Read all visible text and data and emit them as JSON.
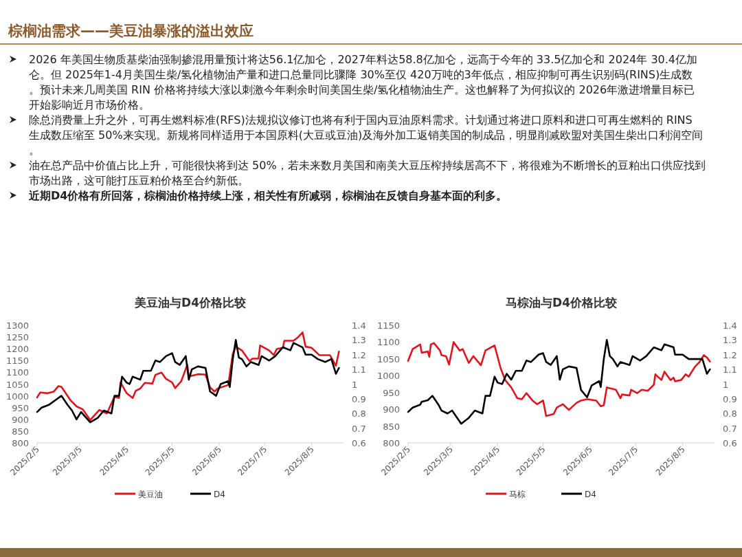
{
  "chart_data": [
    {
      "type": "other",
      "title": "棕榈油需求——美豆油暴涨的溢出效应",
      "annotations": [
        "2026 年美国生物质基柴油强制掺混用量预计将达56.1亿加仑，2027年料达58.8亿加仑，远高于今年的 33.5亿加仑和 2024年 30.4亿加仑。但 2025年1-4月美国生柴/氢化植物油产量和进口总量同比骤降 30%至仅 420万吨的3年低点，相应抑制可再生识别码(RINS)生成数。预计未来几周美国 RIN 价格将持续大涨以刺激今年剩余时间美国生柴/氢化植物油生产。这也解释了为何拟议的 2026年激进增量目标已开始影响近月市场价格。",
        "除总消费量上升之外，可再生燃料标准(RFS)法规拟议修订也将有利于国内豆油原料需求。计划通过将进口原料和进口可再生燃料的 RINS 生成数压缩至 50%来实现。新规将同样适用于本国原料(大豆或豆油)及海外加工返销美国的制成品，明显削减欧盟对美国生柴出口利润空间。",
        "油在总产品中价值占比上升，可能很快将到达 50%，若未来数月美国和南美大豆压榨持续居高不下，将很难为不断增长的豆粕出口供应找到市场出路，这可能打压豆粕价格至合约新低。",
        "近期D4价格有所回落，棕榈油价格持续上涨，相关性有所减弱，棕榈油在反馈自身基本面的利多。"
      ]
    },
    {
      "type": "line",
      "title": "美豆油与D4价格比较",
      "legend": "bottom",
      "xlim": [
        "2025-02-05",
        "2025-08-26"
      ],
      "xticks": [
        {
          "value": "2025-02-05",
          "label": "2025/2/5"
        },
        {
          "value": "2025-03-05",
          "label": "2025/3/5"
        },
        {
          "value": "2025-04-05",
          "label": "2025/4/5"
        },
        {
          "value": "2025-05-05",
          "label": "2025/5/5"
        },
        {
          "value": "2025-06-05",
          "label": "2025/6/5"
        },
        {
          "value": "2025-07-05",
          "label": "2025/7/5"
        },
        {
          "value": "2025-08-05",
          "label": "2025/8/5"
        }
      ],
      "ylim": [
        800,
        1300
      ],
      "yticks": [
        800,
        850,
        900,
        950,
        1000,
        1050,
        1100,
        1150,
        1200,
        1250,
        1300
      ],
      "y2lim": [
        0.6,
        1.4
      ],
      "y2ticks": [
        0.6,
        0.7,
        0.8,
        0.9,
        1,
        1.1,
        1.2,
        1.3,
        1.4
      ],
      "series": [
        {
          "name": "美豆油",
          "color": "#e0141e",
          "x": [
            "2025-02-05",
            "2025-02-07",
            "2025-02-12",
            "2025-02-16",
            "2025-02-19",
            "2025-02-21",
            "2025-02-27",
            "2025-03-03",
            "2025-03-07",
            "2025-03-12",
            "2025-03-18",
            "2025-03-23",
            "2025-03-28",
            "2025-03-31",
            "2025-04-01",
            "2025-04-05",
            "2025-04-09",
            "2025-04-11",
            "2025-04-14",
            "2025-04-17",
            "2025-04-22",
            "2025-04-24",
            "2025-04-28",
            "2025-05-01",
            "2025-05-05",
            "2025-05-07",
            "2025-05-11",
            "2025-05-13",
            "2025-05-15",
            "2025-05-16",
            "2025-05-22",
            "2025-05-27",
            "2025-05-30",
            "2025-06-02",
            "2025-06-04",
            "2025-06-11",
            "2025-06-14",
            "2025-06-16",
            "2025-06-20",
            "2025-06-25",
            "2025-06-27",
            "2025-07-01",
            "2025-07-02",
            "2025-07-08",
            "2025-07-11",
            "2025-07-13",
            "2025-07-17",
            "2025-07-18",
            "2025-07-24",
            "2025-07-27",
            "2025-07-30",
            "2025-08-01",
            "2025-08-05",
            "2025-08-10",
            "2025-08-14",
            "2025-08-17",
            "2025-08-21",
            "2025-08-23"
          ],
          "values": [
            993,
            1014,
            1011,
            1018,
            1041,
            1038,
            981,
            955,
            943,
            897,
            940,
            925,
            996,
            991,
            1057,
            1011,
            991,
            1021,
            1031,
            1055,
            1052,
            1089,
            1099,
            1072,
            1057,
            1033,
            1062,
            1097,
            1133,
            1082,
            1092,
            1090,
            1036,
            1018,
            1031,
            1046,
            1178,
            1209,
            1193,
            1148,
            1158,
            1158,
            1214,
            1193,
            1173,
            1199,
            1204,
            1234,
            1234,
            1249,
            1270,
            1209,
            1204,
            1173,
            1173,
            1173,
            1128,
            1188
          ]
        },
        {
          "name": "D4",
          "color": "#000000",
          "axis": "y2",
          "x": [
            "2025-02-05",
            "2025-02-08",
            "2025-02-13",
            "2025-02-17",
            "2025-02-21",
            "2025-02-25",
            "2025-02-28",
            "2025-03-03",
            "2025-03-06",
            "2025-03-12",
            "2025-03-17",
            "2025-03-21",
            "2025-03-26",
            "2025-03-28",
            "2025-03-31",
            "2025-04-02",
            "2025-04-05",
            "2025-04-07",
            "2025-04-09",
            "2025-04-14",
            "2025-04-16",
            "2025-04-21",
            "2025-04-24",
            "2025-04-27",
            "2025-05-01",
            "2025-05-05",
            "2025-05-07",
            "2025-05-10",
            "2025-05-14",
            "2025-05-16",
            "2025-05-18",
            "2025-05-22",
            "2025-05-27",
            "2025-05-30",
            "2025-06-03",
            "2025-06-06",
            "2025-06-11",
            "2025-06-12",
            "2025-06-14",
            "2025-06-16",
            "2025-06-18",
            "2025-06-20",
            "2025-06-23",
            "2025-06-26",
            "2025-07-01",
            "2025-07-03",
            "2025-07-08",
            "2025-07-12",
            "2025-07-17",
            "2025-07-22",
            "2025-07-24",
            "2025-07-30",
            "2025-08-01",
            "2025-08-05",
            "2025-08-09",
            "2025-08-14",
            "2025-08-18",
            "2025-08-21",
            "2025-08-23"
          ],
          "values": [
            0.81,
            0.84,
            0.86,
            0.89,
            0.92,
            0.86,
            0.82,
            0.76,
            0.81,
            0.74,
            0.77,
            0.82,
            0.8,
            0.92,
            0.92,
            1.05,
            1.01,
            1,
            1.05,
            1.03,
            1.09,
            1.09,
            1.16,
            1.15,
            1.19,
            1.21,
            1.15,
            1.13,
            1.19,
            1.03,
            1.1,
            1.12,
            1.11,
            0.95,
            0.92,
            1,
            1.02,
            0.98,
            1.17,
            1.3,
            1.18,
            1.17,
            1.12,
            1.15,
            1.13,
            1.19,
            1.16,
            1.19,
            1.25,
            1.23,
            1.28,
            1.25,
            1.2,
            1.2,
            1.17,
            1.15,
            1.17,
            1.07,
            1.11
          ]
        }
      ]
    },
    {
      "type": "line",
      "title": "马棕油与D4价格比较",
      "legend": "bottom",
      "xlim": [
        "2025-02-05",
        "2025-08-26"
      ],
      "xticks": [
        {
          "value": "2025-02-05",
          "label": "2025/2/5"
        },
        {
          "value": "2025-03-05",
          "label": "2025/3/5"
        },
        {
          "value": "2025-04-05",
          "label": "2025/4/5"
        },
        {
          "value": "2025-05-05",
          "label": "2025/5/5"
        },
        {
          "value": "2025-06-05",
          "label": "2025/6/5"
        },
        {
          "value": "2025-07-05",
          "label": "2025/7/5"
        },
        {
          "value": "2025-08-05",
          "label": "2025/8/5"
        }
      ],
      "ylim": [
        800,
        1150
      ],
      "yticks": [
        800,
        850,
        900,
        950,
        1000,
        1050,
        1100,
        1150
      ],
      "y2lim": [
        0.6,
        1.4
      ],
      "y2ticks": [
        0.6,
        0.7,
        0.8,
        0.9,
        1,
        1.1,
        1.2,
        1.3,
        1.4
      ],
      "series": [
        {
          "name": "马棕",
          "color": "#e0141e",
          "x": [
            "2025-02-05",
            "2025-02-08",
            "2025-02-13",
            "2025-02-14",
            "2025-02-18",
            "2025-02-19",
            "2025-02-20",
            "2025-02-22",
            "2025-02-26",
            "2025-02-27",
            "2025-03-02",
            "2025-03-04",
            "2025-03-07",
            "2025-03-11",
            "2025-03-13",
            "2025-03-17",
            "2025-03-20",
            "2025-03-25",
            "2025-03-28",
            "2025-04-03",
            "2025-04-07",
            "2025-04-10",
            "2025-04-14",
            "2025-04-18",
            "2025-04-21",
            "2025-04-24",
            "2025-04-28",
            "2025-05-01",
            "2025-05-05",
            "2025-05-07",
            "2025-05-12",
            "2025-05-14",
            "2025-05-18",
            "2025-05-22",
            "2025-05-27",
            "2025-05-30",
            "2025-06-03",
            "2025-06-09",
            "2025-06-12",
            "2025-06-14",
            "2025-06-16",
            "2025-06-22",
            "2025-06-25",
            "2025-06-26",
            "2025-07-01",
            "2025-07-02",
            "2025-07-06",
            "2025-07-09",
            "2025-07-13",
            "2025-07-17",
            "2025-07-18",
            "2025-07-22",
            "2025-07-24",
            "2025-07-28",
            "2025-07-30",
            "2025-07-31",
            "2025-08-04",
            "2025-08-07",
            "2025-08-09",
            "2025-08-13",
            "2025-08-16",
            "2025-08-19",
            "2025-08-21",
            "2025-08-23"
          ],
          "values": [
            1044,
            1079,
            1093,
            1068,
            1072,
            1056,
            1093,
            1097,
            1075,
            1061,
            1058,
            1033,
            1100,
            1075,
            1079,
            1038,
            1058,
            1031,
            1075,
            1090,
            1022,
            987,
            965,
            933,
            930,
            948,
            926,
            915,
            926,
            880,
            886,
            905,
            915,
            898,
            919,
            926,
            930,
            926,
            909,
            912,
            965,
            958,
            933,
            944,
            941,
            958,
            948,
            958,
            955,
            973,
            1004,
            987,
            1012,
            987,
            994,
            983,
            987,
            1004,
            997,
            1026,
            1040,
            1061,
            1054,
            1042
          ]
        },
        {
          "name": "D4",
          "color": "#000000",
          "axis": "y2",
          "x": [
            "2025-02-05",
            "2025-02-08",
            "2025-02-13",
            "2025-02-14",
            "2025-02-18",
            "2025-02-21",
            "2025-02-25",
            "2025-02-27",
            "2025-03-03",
            "2025-03-06",
            "2025-03-12",
            "2025-03-17",
            "2025-03-21",
            "2025-03-26",
            "2025-03-28",
            "2025-03-31",
            "2025-04-03",
            "2025-04-05",
            "2025-04-08",
            "2025-04-11",
            "2025-04-14",
            "2025-04-17",
            "2025-04-21",
            "2025-04-24",
            "2025-04-27",
            "2025-05-02",
            "2025-05-05",
            "2025-05-07",
            "2025-05-10",
            "2025-05-14",
            "2025-05-16",
            "2025-05-18",
            "2025-05-22",
            "2025-05-27",
            "2025-05-30",
            "2025-06-03",
            "2025-06-06",
            "2025-06-11",
            "2025-06-12",
            "2025-06-14",
            "2025-06-16",
            "2025-06-18",
            "2025-06-20",
            "2025-06-23",
            "2025-06-25",
            "2025-07-01",
            "2025-07-03",
            "2025-07-08",
            "2025-07-12",
            "2025-07-17",
            "2025-07-22",
            "2025-07-24",
            "2025-07-30",
            "2025-07-31",
            "2025-08-05",
            "2025-08-09",
            "2025-08-14",
            "2025-08-18",
            "2025-08-21",
            "2025-08-23"
          ],
          "values": [
            0.81,
            0.84,
            0.86,
            0.88,
            0.89,
            0.92,
            0.86,
            0.82,
            0.8,
            0.82,
            0.73,
            0.77,
            0.82,
            0.8,
            0.92,
            0.92,
            1.05,
            1.01,
            1,
            1.07,
            1.03,
            1.09,
            1.09,
            1.16,
            1.15,
            1.2,
            1.21,
            1.15,
            1.13,
            1.19,
            1.03,
            1.1,
            1.12,
            1.11,
            0.96,
            0.91,
            0.99,
            1.02,
            0.98,
            1.17,
            1.3,
            1.19,
            1.17,
            1.12,
            1.15,
            1.13,
            1.19,
            1.16,
            1.19,
            1.25,
            1.23,
            1.27,
            1.25,
            1.2,
            1.2,
            1.17,
            1.17,
            1.17,
            1.07,
            1.1
          ]
        }
      ]
    }
  ]
}
